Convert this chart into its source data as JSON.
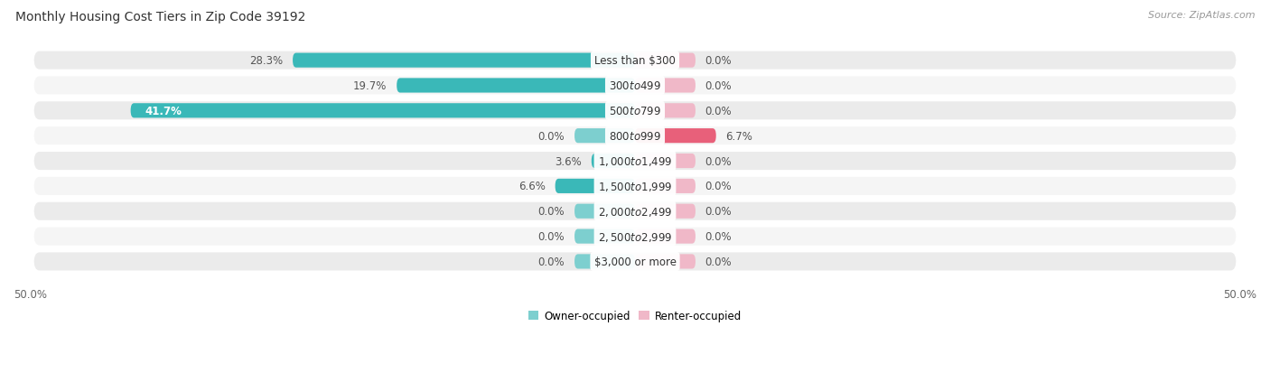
{
  "title": "Monthly Housing Cost Tiers in Zip Code 39192",
  "source": "Source: ZipAtlas.com",
  "categories": [
    "Less than $300",
    "$300 to $499",
    "$500 to $799",
    "$800 to $999",
    "$1,000 to $1,499",
    "$1,500 to $1,999",
    "$2,000 to $2,499",
    "$2,500 to $2,999",
    "$3,000 or more"
  ],
  "owner_values": [
    28.3,
    19.7,
    41.7,
    0.0,
    3.6,
    6.6,
    0.0,
    0.0,
    0.0
  ],
  "renter_values": [
    0.0,
    0.0,
    0.0,
    6.7,
    0.0,
    0.0,
    0.0,
    0.0,
    0.0
  ],
  "owner_color_strong": "#3ab8b8",
  "owner_color_light": "#7dcfcf",
  "renter_color_strong": "#e8607a",
  "renter_color_light": "#f0b8c8",
  "row_color_odd": "#ebebeb",
  "row_color_even": "#f5f5f5",
  "axis_limit": 50.0,
  "stub_size": 5.0,
  "legend_owner": "Owner-occupied",
  "legend_renter": "Renter-occupied",
  "title_fontsize": 10,
  "source_fontsize": 8,
  "label_fontsize": 8.5,
  "category_fontsize": 8.5,
  "bar_height": 0.58,
  "row_padding": 0.72
}
